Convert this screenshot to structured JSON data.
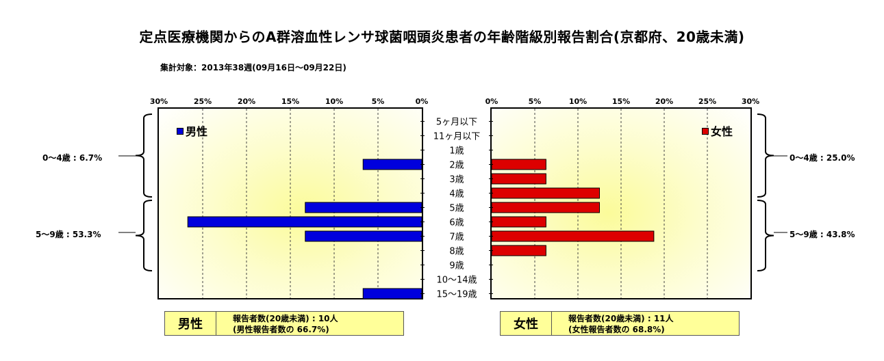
{
  "title": "定点医療機関からのA群溶血性レンサ球菌咽頭炎患者の年齢階級別報告割合(京都府、20歳未満)",
  "subtitle": "集計対象：2013年38週(09月16日～09月22日)",
  "colors": {
    "male": "#0000dd",
    "female": "#dd0000",
    "panel": "#ffff99"
  },
  "chart_data": {
    "type": "bar",
    "orientation": "horizontal-butterfly",
    "categories": [
      "5ヶ月以下",
      "11ヶ月以下",
      "1歳",
      "2歳",
      "3歳",
      "4歳",
      "5歳",
      "6歳",
      "7歳",
      "8歳",
      "9歳",
      "10～14歳",
      "15～19歳"
    ],
    "xlim": [
      0,
      30
    ],
    "x_ticks": [
      "0%",
      "5%",
      "10%",
      "15%",
      "20%",
      "25%",
      "30%"
    ],
    "grid": true,
    "series": [
      {
        "name": "男性",
        "values": [
          0,
          0,
          0,
          6.7,
          0,
          0,
          13.3,
          26.7,
          13.3,
          0,
          0,
          0,
          6.7
        ]
      },
      {
        "name": "女性",
        "values": [
          0,
          0,
          0,
          6.3,
          6.3,
          12.5,
          12.5,
          6.3,
          18.8,
          6.3,
          0,
          0,
          0
        ]
      }
    ],
    "group_labels": {
      "male": [
        "0～4歳 : 6.7%",
        "5～9歳 : 53.3%"
      ],
      "female": [
        "0～4歳 : 25.0%",
        "5～9歳 : 43.8%"
      ]
    }
  },
  "legend": {
    "male": "男性",
    "female": "女性"
  },
  "summary": {
    "male": {
      "sex": "男性",
      "line1": "報告者数(20歳未満) : 10人",
      "line2": "(男性報告者数の 66.7%)"
    },
    "female": {
      "sex": "女性",
      "line1": "報告者数(20歳未満) : 11人",
      "line2": "(女性報告者数の 68.8%)"
    }
  }
}
